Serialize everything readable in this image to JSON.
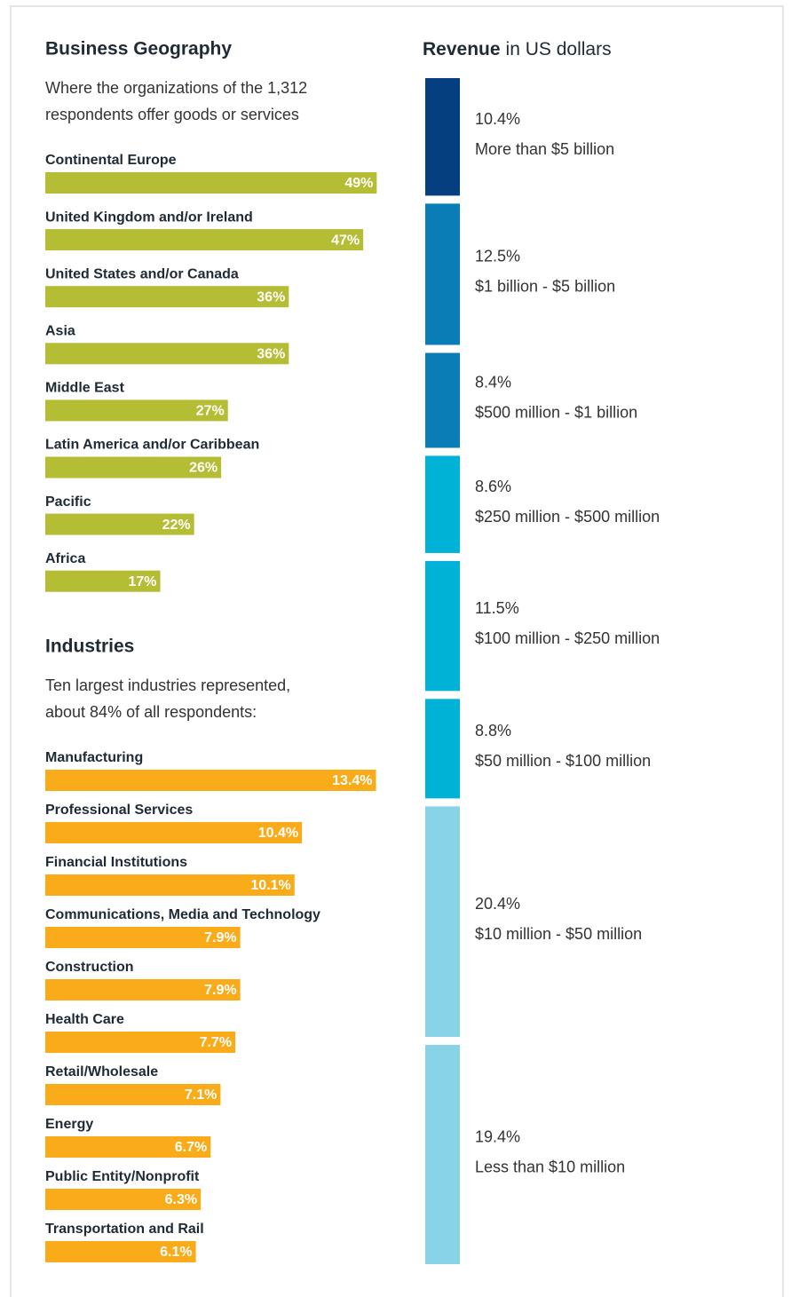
{
  "chart_data": [
    {
      "type": "hbar",
      "title": "Business Geography",
      "subtitle": [
        "Where the organizations of the 1,312",
        "respondents offer goods or services"
      ],
      "categories": [
        "Continental Europe",
        "United Kingdom and/or Ireland",
        "United States and/or Canada",
        "Asia",
        "Middle East",
        "Latin America and/or Caribbean",
        "Pacific",
        "Africa"
      ],
      "values": [
        49,
        47,
        36,
        36,
        27,
        26,
        22,
        17
      ],
      "value_labels": [
        "49%",
        "47%",
        "36%",
        "36%",
        "27%",
        "26%",
        "22%",
        "17%"
      ],
      "color": "#b5bd35"
    },
    {
      "type": "hbar",
      "title": "Industries",
      "subtitle": [
        "Ten largest industries represented,",
        "about 84% of all respondents:"
      ],
      "categories": [
        "Manufacturing",
        "Professional Services",
        "Financial Institutions",
        "Communications, Media and Technology",
        "Construction",
        "Health Care",
        "Retail/Wholesale",
        "Energy",
        "Public Entity/Nonprofit",
        "Transportation and Rail"
      ],
      "values": [
        13.4,
        10.4,
        10.1,
        7.9,
        7.9,
        7.7,
        7.1,
        6.7,
        6.3,
        6.1
      ],
      "value_labels": [
        "13.4%",
        "10.4%",
        "10.1%",
        "7.9%",
        "7.9%",
        "7.7%",
        "7.1%",
        "6.7%",
        "6.3%",
        "6.1%"
      ],
      "color": "#f9ab1a"
    },
    {
      "type": "stacked",
      "title": "Revenue",
      "subtitle": "in US dollars",
      "categories": [
        "More than $5 billion",
        "$1 billion - $5 billion",
        "$500 million - $1 billion",
        "$250 million - $500 million",
        "$100 million - $250 million",
        "$50 million - $100 million",
        "$10 million - $50 million",
        "Less than $10 million"
      ],
      "values": [
        10.4,
        12.5,
        8.4,
        8.6,
        11.5,
        8.8,
        20.4,
        19.4
      ],
      "value_labels": [
        "10.4%",
        "12.5%",
        "8.4%",
        "8.6%",
        "11.5%",
        "8.8%",
        "20.4%",
        "19.4%"
      ],
      "colors": [
        "#063f80",
        "#0a7db6",
        "#0a7db6",
        "#00b2d5",
        "#00b2d5",
        "#00b2d5",
        "#88d3e6",
        "#88d3e6"
      ]
    }
  ]
}
